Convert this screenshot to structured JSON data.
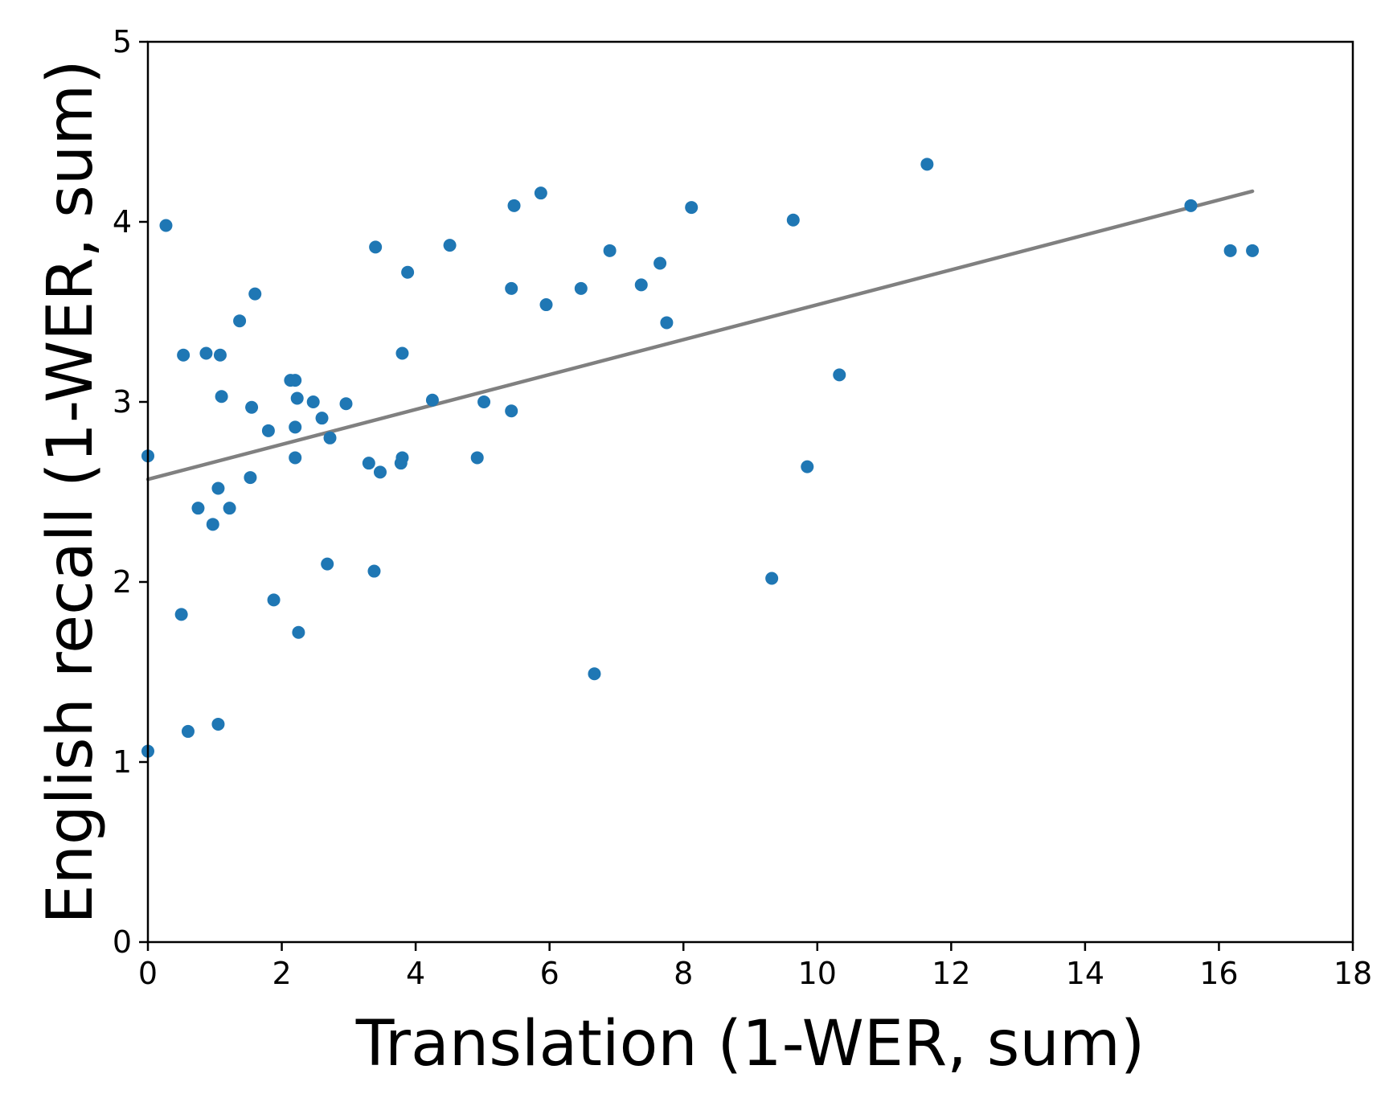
{
  "chart_data": {
    "type": "scatter",
    "xlabel": "Translation (1-WER, sum)",
    "ylabel": "English recall (1-WER, sum)",
    "xlim": [
      0,
      18
    ],
    "ylim": [
      0,
      5
    ],
    "x_ticks": [
      0,
      2,
      4,
      6,
      8,
      10,
      12,
      14,
      16,
      18
    ],
    "y_ticks": [
      0,
      1,
      2,
      3,
      4,
      5
    ],
    "grid": false,
    "point_color": "#1f77b4",
    "trend_color": "#808080",
    "trend_line": {
      "x": [
        0,
        16.5
      ],
      "y": [
        2.57,
        4.17
      ]
    },
    "points": [
      {
        "x": 0.0,
        "y": 2.7
      },
      {
        "x": 0.0,
        "y": 1.06
      },
      {
        "x": 0.27,
        "y": 3.98
      },
      {
        "x": 0.5,
        "y": 1.82
      },
      {
        "x": 0.53,
        "y": 3.26
      },
      {
        "x": 0.6,
        "y": 1.17
      },
      {
        "x": 0.75,
        "y": 2.41
      },
      {
        "x": 0.87,
        "y": 3.27
      },
      {
        "x": 0.97,
        "y": 2.32
      },
      {
        "x": 1.05,
        "y": 2.52
      },
      {
        "x": 1.05,
        "y": 1.21
      },
      {
        "x": 1.08,
        "y": 3.26
      },
      {
        "x": 1.1,
        "y": 3.03
      },
      {
        "x": 1.22,
        "y": 2.41
      },
      {
        "x": 1.37,
        "y": 3.45
      },
      {
        "x": 1.53,
        "y": 2.58
      },
      {
        "x": 1.55,
        "y": 2.97
      },
      {
        "x": 1.6,
        "y": 3.6
      },
      {
        "x": 1.8,
        "y": 2.84
      },
      {
        "x": 1.88,
        "y": 1.9
      },
      {
        "x": 2.13,
        "y": 3.12
      },
      {
        "x": 2.2,
        "y": 3.12
      },
      {
        "x": 2.2,
        "y": 2.86
      },
      {
        "x": 2.2,
        "y": 2.69
      },
      {
        "x": 2.23,
        "y": 3.02
      },
      {
        "x": 2.25,
        "y": 1.72
      },
      {
        "x": 2.47,
        "y": 3.0
      },
      {
        "x": 2.6,
        "y": 2.91
      },
      {
        "x": 2.68,
        "y": 2.1
      },
      {
        "x": 2.72,
        "y": 2.8
      },
      {
        "x": 2.96,
        "y": 2.99
      },
      {
        "x": 3.3,
        "y": 2.66
      },
      {
        "x": 3.38,
        "y": 2.06
      },
      {
        "x": 3.4,
        "y": 3.86
      },
      {
        "x": 3.47,
        "y": 2.61
      },
      {
        "x": 3.78,
        "y": 2.66
      },
      {
        "x": 3.8,
        "y": 2.69
      },
      {
        "x": 3.8,
        "y": 3.27
      },
      {
        "x": 3.88,
        "y": 3.72
      },
      {
        "x": 4.25,
        "y": 3.01
      },
      {
        "x": 4.51,
        "y": 3.87
      },
      {
        "x": 4.92,
        "y": 2.69
      },
      {
        "x": 5.02,
        "y": 3.0
      },
      {
        "x": 5.43,
        "y": 3.63
      },
      {
        "x": 5.43,
        "y": 2.95
      },
      {
        "x": 5.47,
        "y": 4.09
      },
      {
        "x": 5.87,
        "y": 4.16
      },
      {
        "x": 5.95,
        "y": 3.54
      },
      {
        "x": 6.47,
        "y": 3.63
      },
      {
        "x": 6.67,
        "y": 1.49
      },
      {
        "x": 6.9,
        "y": 3.84
      },
      {
        "x": 7.37,
        "y": 3.65
      },
      {
        "x": 7.65,
        "y": 3.77
      },
      {
        "x": 7.75,
        "y": 3.44
      },
      {
        "x": 8.12,
        "y": 4.08
      },
      {
        "x": 9.32,
        "y": 2.02
      },
      {
        "x": 9.64,
        "y": 4.01
      },
      {
        "x": 9.85,
        "y": 2.64
      },
      {
        "x": 10.33,
        "y": 3.15
      },
      {
        "x": 11.64,
        "y": 4.32
      },
      {
        "x": 15.58,
        "y": 4.09
      },
      {
        "x": 16.17,
        "y": 3.84
      },
      {
        "x": 16.5,
        "y": 3.84
      }
    ]
  }
}
